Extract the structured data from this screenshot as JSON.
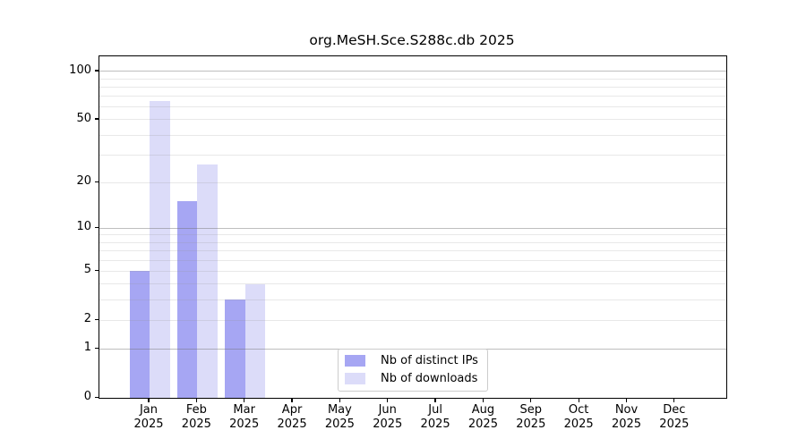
{
  "title": "org.MeSH.Sce.S288c.db 2025",
  "colors": {
    "distinct_ips": "#a6a6f3",
    "downloads": "#dcdcf9",
    "grid_major": "#c2c2c2",
    "grid_minor": "#ebebeb",
    "axis": "#000000",
    "legend_border": "#cccccc"
  },
  "chart_data": {
    "type": "bar",
    "title": "org.MeSH.Sce.S288c.db 2025",
    "categories": [
      "Jan",
      "Feb",
      "Mar",
      "Apr",
      "May",
      "Jun",
      "Jul",
      "Aug",
      "Sep",
      "Oct",
      "Nov",
      "Dec"
    ],
    "category_year": "2025",
    "series": [
      {
        "name": "Nb of distinct IPs",
        "color_key": "distinct_ips",
        "values": [
          5,
          15,
          3,
          0,
          0,
          0,
          0,
          0,
          0,
          0,
          0,
          0
        ]
      },
      {
        "name": "Nb of downloads",
        "color_key": "downloads",
        "values": [
          65,
          26,
          4,
          0,
          0,
          0,
          0,
          0,
          0,
          0,
          0,
          0
        ]
      }
    ],
    "xlabel": "",
    "ylabel": "",
    "y_ticks": [
      0,
      1,
      2,
      5,
      10,
      20,
      50,
      100
    ],
    "y_scale": "log10(value+1)",
    "y_axis_max": 124,
    "grid": "horizontal",
    "grid_major_values": [
      1,
      10,
      100
    ],
    "grid_minor_values": [
      2,
      3,
      4,
      5,
      6,
      7,
      8,
      9,
      20,
      30,
      40,
      50,
      60,
      70,
      80,
      90
    ],
    "legend_position": "lower center"
  }
}
